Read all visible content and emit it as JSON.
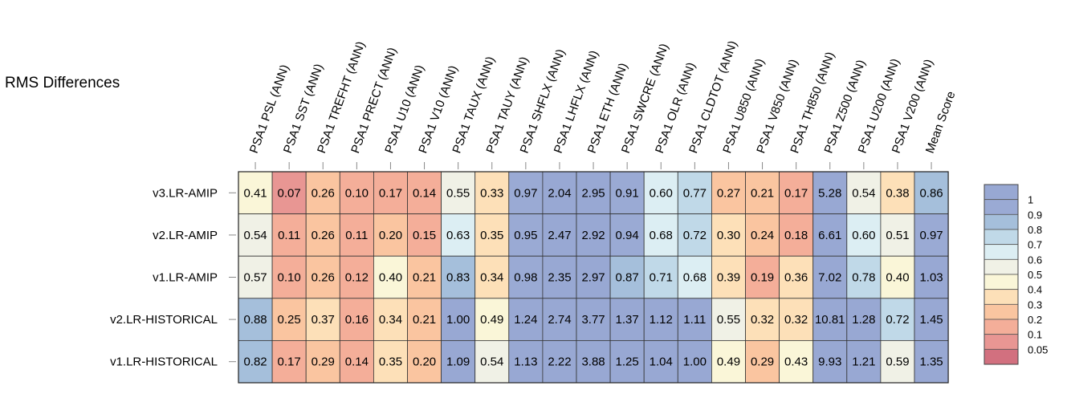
{
  "chart_data": {
    "type": "heatmap",
    "title": "RMS Differences",
    "columns": [
      "PSA1 PSL (ANN)",
      "PSA1 SST (ANN)",
      "PSA1 TREFHT (ANN)",
      "PSA1 PRECT (ANN)",
      "PSA1 U10 (ANN)",
      "PSA1 V10 (ANN)",
      "PSA1 TAUX (ANN)",
      "PSA1 TAUY (ANN)",
      "PSA1 SHFLX (ANN)",
      "PSA1 LHFLX (ANN)",
      "PSA1 ETH (ANN)",
      "PSA1 SWCRE (ANN)",
      "PSA1 OLR (ANN)",
      "PSA1 CLDTOT (ANN)",
      "PSA1 U850 (ANN)",
      "PSA1 V850 (ANN)",
      "PSA1 TH850 (ANN)",
      "PSA1 Z500 (ANN)",
      "PSA1 U200 (ANN)",
      "PSA1 V200 (ANN)",
      "Mean Score"
    ],
    "rows": [
      "v3.LR-AMIP",
      "v2.LR-AMIP",
      "v1.LR-AMIP",
      "v2.LR-HISTORICAL",
      "v1.LR-HISTORICAL"
    ],
    "values": [
      [
        "0.41",
        "0.07",
        "0.26",
        "0.10",
        "0.17",
        "0.14",
        "0.55",
        "0.33",
        "0.97",
        "2.04",
        "2.95",
        "0.91",
        "0.60",
        "0.77",
        "0.27",
        "0.21",
        "0.17",
        "5.28",
        "0.54",
        "0.38",
        "0.86"
      ],
      [
        "0.54",
        "0.11",
        "0.26",
        "0.11",
        "0.20",
        "0.15",
        "0.63",
        "0.35",
        "0.95",
        "2.47",
        "2.92",
        "0.94",
        "0.68",
        "0.72",
        "0.30",
        "0.24",
        "0.18",
        "6.61",
        "0.60",
        "0.51",
        "0.97"
      ],
      [
        "0.57",
        "0.10",
        "0.26",
        "0.12",
        "0.40",
        "0.21",
        "0.83",
        "0.34",
        "0.98",
        "2.35",
        "2.97",
        "0.87",
        "0.71",
        "0.68",
        "0.39",
        "0.19",
        "0.36",
        "7.02",
        "0.78",
        "0.40",
        "1.03"
      ],
      [
        "0.88",
        "0.25",
        "0.37",
        "0.16",
        "0.34",
        "0.21",
        "1.00",
        "0.49",
        "1.24",
        "2.74",
        "3.77",
        "1.37",
        "1.12",
        "1.11",
        "0.55",
        "0.32",
        "0.32",
        "10.81",
        "1.28",
        "0.72",
        "1.45"
      ],
      [
        "0.82",
        "0.17",
        "0.29",
        "0.14",
        "0.35",
        "0.20",
        "1.09",
        "0.54",
        "1.13",
        "2.22",
        "3.88",
        "1.25",
        "1.04",
        "1.00",
        "0.49",
        "0.29",
        "0.43",
        "9.93",
        "1.21",
        "0.59",
        "1.35"
      ]
    ],
    "colorbar": {
      "ticks": [
        "0.05",
        "0.1",
        "0.2",
        "0.3",
        "0.4",
        "0.5",
        "0.6",
        "0.7",
        "0.8",
        "0.9",
        "1"
      ],
      "colors": [
        "#d2707f",
        "#e89693",
        "#f4ae99",
        "#fac5a0",
        "#fde0b8",
        "#faf6d8",
        "#f0f1e6",
        "#dceef3",
        "#c0d9e8",
        "#a5bfdb",
        "#9aaad4",
        "#98a8d3"
      ]
    },
    "grid": true,
    "legend_placement": "right"
  }
}
